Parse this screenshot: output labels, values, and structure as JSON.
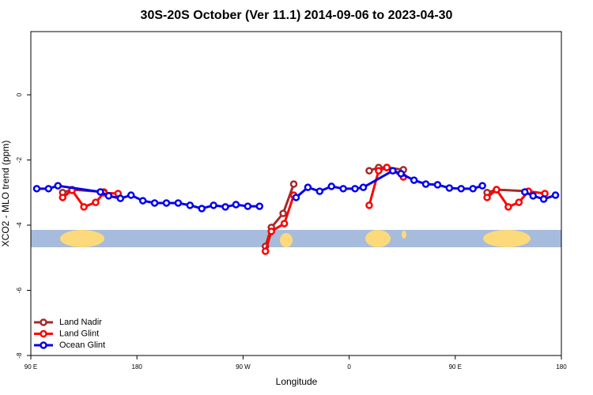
{
  "chart_data": {
    "type": "line",
    "title": "30S-20S October (Ver 11.1)   2014-09-06 to 2023-04-30",
    "x_label": "Longitude",
    "y_label": "XCO2 - MLO trend (ppm)",
    "xlim": [
      90,
      540
    ],
    "ylim": [
      -8,
      1.94
    ],
    "xticks": [
      {
        "value": 90,
        "label": "90 E"
      },
      180,
      {
        "value": 270,
        "label": "90 W"
      },
      {
        "value": 360,
        "label": "0"
      },
      {
        "value": 450,
        "label": "90 E"
      },
      {
        "value": 540,
        "label": "180"
      }
    ],
    "yticks": [
      0,
      -2,
      -4,
      -6,
      -8
    ],
    "legend": "bottom-left",
    "series": [
      {
        "name": "Land Nadir",
        "color": "#a52a2a",
        "x": [
          117,
          125,
          152,
          null,
          289,
          294,
          304,
          313,
          null,
          377,
          385,
          392,
          406,
          null,
          477,
          485,
          512
        ],
        "values": [
          -3.0,
          -2.91,
          -2.98,
          null,
          -4.65,
          -4.07,
          -3.64,
          -2.74,
          null,
          -2.33,
          -2.23,
          -2.23,
          -2.3,
          null,
          -3.0,
          -2.91,
          -2.96
        ]
      },
      {
        "name": "Land Glint",
        "color": "#ff0000",
        "x": [
          117,
          125,
          135,
          145,
          152,
          164,
          null,
          289,
          294,
          305,
          313,
          null,
          377,
          385,
          392,
          406,
          null,
          477,
          485,
          495,
          504,
          512,
          526
        ],
        "values": [
          -3.15,
          -2.93,
          -3.44,
          -3.3,
          -3.01,
          -3.03,
          null,
          -4.8,
          -4.19,
          -3.95,
          -3.08,
          null,
          -3.39,
          -2.33,
          -2.23,
          -2.52,
          null,
          -3.15,
          -2.91,
          -3.44,
          -3.3,
          -2.96,
          -3.03
        ]
      },
      {
        "name": "Ocean Glint",
        "color": "#0000ee",
        "x": [
          95,
          105,
          113,
          149,
          156,
          166,
          175,
          185,
          195,
          205,
          215,
          225,
          235,
          245,
          255,
          264,
          274,
          284,
          null,
          315,
          325,
          335,
          345,
          355,
          365,
          372,
          397,
          404,
          415,
          425,
          435,
          445,
          455,
          465,
          473,
          null,
          509,
          516,
          525,
          535
        ],
        "values": [
          -2.88,
          -2.88,
          -2.79,
          -2.98,
          -3.1,
          -3.18,
          -3.08,
          -3.25,
          -3.32,
          -3.32,
          -3.32,
          -3.39,
          -3.49,
          -3.39,
          -3.44,
          -3.37,
          -3.42,
          -3.42,
          null,
          -3.15,
          -2.84,
          -2.96,
          -2.81,
          -2.88,
          -2.88,
          -2.84,
          -2.33,
          -2.42,
          -2.62,
          -2.74,
          -2.76,
          -2.86,
          -2.88,
          -2.88,
          -2.79,
          null,
          -2.98,
          -3.1,
          -3.2,
          -3.08
        ]
      }
    ]
  }
}
